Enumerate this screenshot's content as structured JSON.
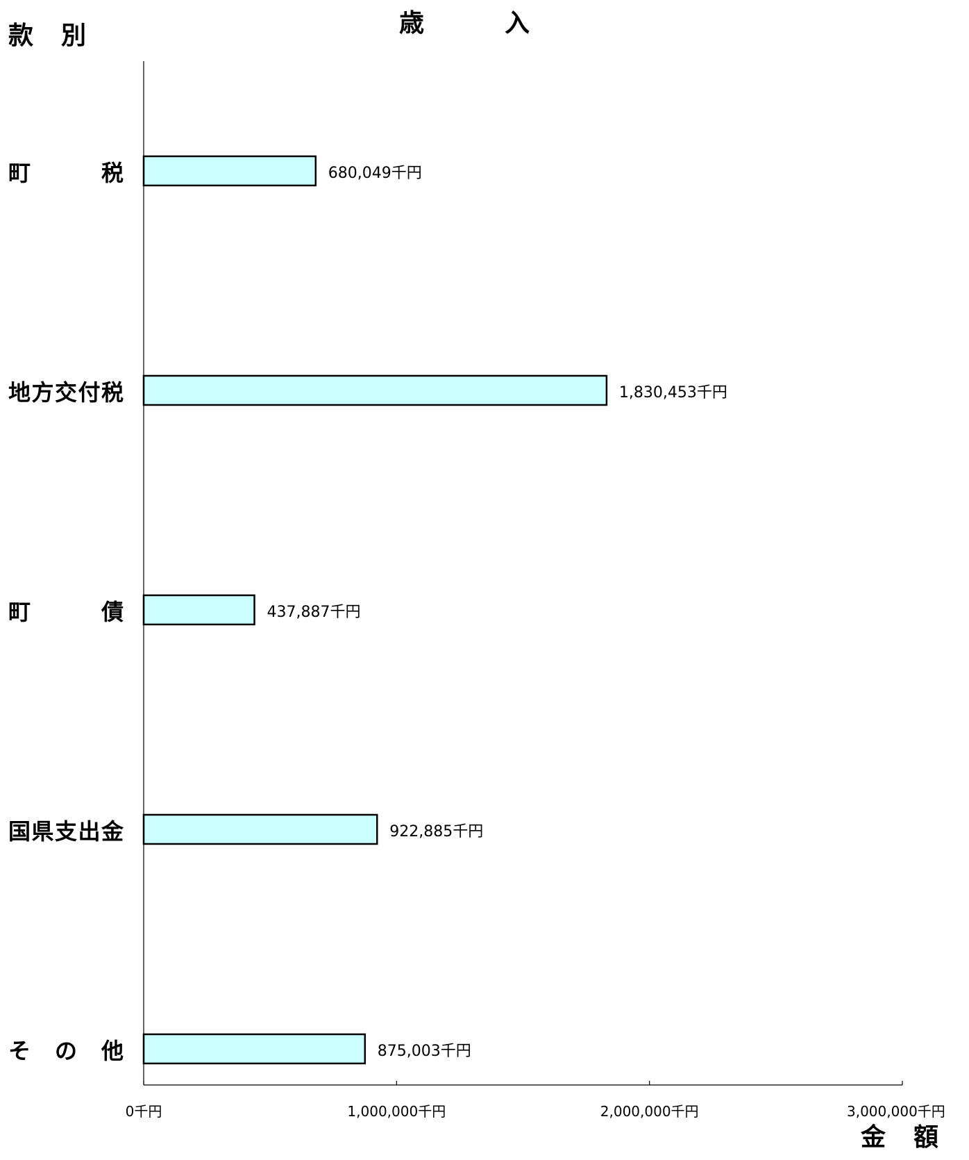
{
  "chart_data": {
    "type": "bar",
    "orientation": "horizontal",
    "title": "歳　　　入",
    "ylabel": "款　別",
    "xlabel": "金　額",
    "categories": [
      "町　　　税",
      "地方交付税",
      "町　　　債",
      "国県支出金",
      "そ　の　他"
    ],
    "values": [
      680049,
      1830453,
      437887,
      922885,
      875003
    ],
    "value_labels": [
      "680,049千円",
      "1,830,453千円",
      "437,887千円",
      "922,885千円",
      "875,003千円"
    ],
    "xlim": [
      0,
      3000000
    ],
    "ticks": [
      0,
      1000000,
      2000000,
      3000000
    ],
    "tick_labels": [
      "0千円",
      "1,000,000千円",
      "2,000,000千円",
      "3,000,000千円"
    ],
    "grid": false,
    "legend": "none",
    "bar_color": "#ccffff",
    "bar_border": "#000000"
  }
}
